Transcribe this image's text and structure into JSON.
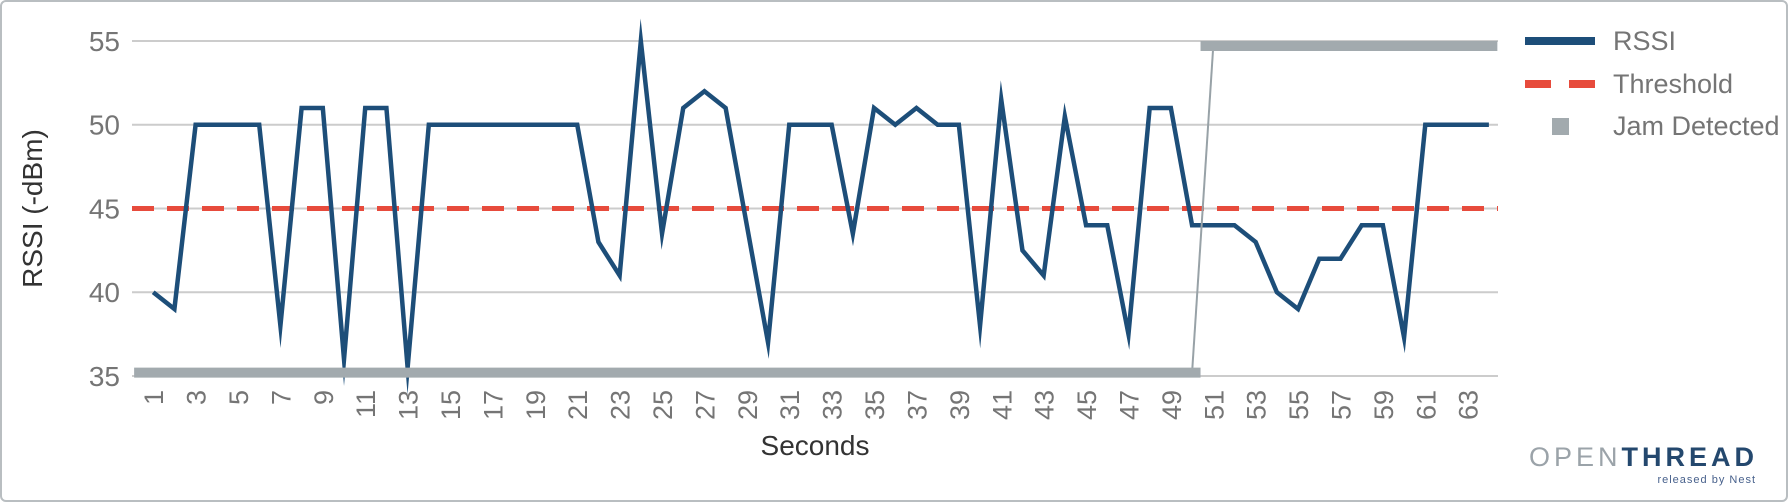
{
  "chart_data": {
    "type": "line",
    "x": [
      1,
      2,
      3,
      4,
      5,
      6,
      7,
      8,
      9,
      10,
      11,
      12,
      13,
      14,
      15,
      16,
      17,
      18,
      19,
      20,
      21,
      22,
      23,
      24,
      25,
      26,
      27,
      28,
      29,
      30,
      31,
      32,
      33,
      34,
      35,
      36,
      37,
      38,
      39,
      40,
      41,
      42,
      43,
      44,
      45,
      46,
      47,
      48,
      49,
      50,
      51,
      52,
      53,
      54,
      55,
      56,
      57,
      58,
      59,
      60,
      61,
      62,
      63,
      64
    ],
    "series": [
      {
        "name": "RSSI",
        "type": "line",
        "color": "#1d4e79",
        "values": [
          40,
          39,
          50,
          50,
          50,
          50,
          38,
          51,
          51,
          36,
          51,
          51,
          35.5,
          50,
          50,
          50,
          50,
          50,
          50,
          50,
          50,
          43,
          41,
          55,
          43.5,
          51,
          52,
          51,
          44,
          37,
          50,
          50,
          50,
          43.5,
          51,
          50,
          51,
          50,
          50,
          38,
          51.5,
          42.5,
          41,
          50.5,
          44,
          44,
          37.5,
          51,
          51,
          44,
          44,
          44,
          43,
          40,
          39,
          42,
          42,
          44,
          44,
          37.3,
          50,
          50,
          50,
          50
        ]
      },
      {
        "name": "Threshold",
        "type": "dashed-line",
        "color": "#e74b3c",
        "value": 45
      },
      {
        "name": "Jam Detected",
        "type": "step",
        "color": "#a2aaae",
        "connector_color": "#98a2a7",
        "display_low": 35.2,
        "display_high": 54.7,
        "active_from_second": 51,
        "segments": [
          {
            "from": 0.1,
            "to": 50.4,
            "level": "low"
          },
          {
            "from": 50.4,
            "to": 64.4,
            "level": "high"
          }
        ],
        "connector": {
          "from_x": 50,
          "to_x": 51
        }
      }
    ],
    "title": "",
    "xlabel": "Seconds",
    "ylabel": "RSSI (-dBm)",
    "xlim": [
      0,
      64.43
    ],
    "ylim": [
      35,
      55
    ],
    "yticks": [
      35,
      40,
      45,
      50,
      55
    ],
    "xticks": [
      1,
      3,
      5,
      7,
      9,
      11,
      13,
      15,
      17,
      19,
      21,
      23,
      25,
      27,
      29,
      31,
      33,
      35,
      37,
      39,
      41,
      43,
      45,
      47,
      49,
      51,
      53,
      55,
      57,
      59,
      61,
      63
    ],
    "grid": true,
    "legend_position": "right"
  },
  "legend": {
    "items": [
      {
        "label": "RSSI",
        "swatch": "line"
      },
      {
        "label": "Threshold",
        "swatch": "dashed"
      },
      {
        "label": "Jam Detected",
        "swatch": "square"
      }
    ]
  },
  "branding": {
    "logo_open": "OPEN",
    "logo_thread": "THREAD",
    "logo_tagline": "released by Nest"
  },
  "colors": {
    "rssi": "#1d4e79",
    "threshold": "#e74b3c",
    "jam": "#a2aaae",
    "gridline": "#cccccc",
    "tick_text": "#757575",
    "title_text": "#333333"
  }
}
